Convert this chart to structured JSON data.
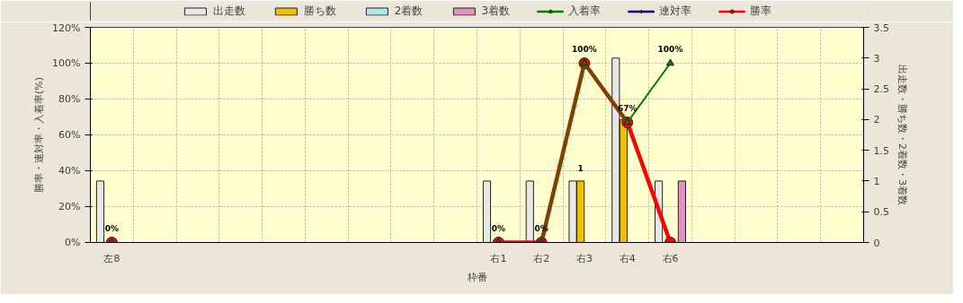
{
  "chart_data": {
    "type": "bar",
    "xlabel": "枠番",
    "ylabel": "勝率・連対率・入着率(%)",
    "y2label": "出走数・勝ち数・2着数・3着数",
    "categories": [
      "左8",
      null,
      null,
      null,
      null,
      null,
      null,
      null,
      null,
      "右1",
      "右2",
      "右3",
      "右4",
      "右6",
      null,
      null,
      null,
      null
    ],
    "series": [
      {
        "name": "出走数",
        "axis": "y2",
        "color": "#e8e8e8",
        "values": [
          1,
          null,
          null,
          null,
          null,
          null,
          null,
          null,
          null,
          1,
          1,
          1,
          3,
          1,
          null,
          null,
          null,
          null
        ]
      },
      {
        "name": "勝ち数",
        "axis": "y2",
        "color": "#f0c000",
        "values": [
          0,
          null,
          null,
          null,
          null,
          null,
          null,
          null,
          null,
          0,
          0,
          1,
          2,
          0,
          null,
          null,
          null,
          null
        ],
        "value_labels": [
          null,
          null,
          null,
          null,
          null,
          null,
          null,
          null,
          null,
          null,
          null,
          "1",
          null,
          null,
          null,
          null,
          null,
          null
        ]
      },
      {
        "name": "2着数",
        "axis": "y2",
        "color": "#b0e8f0",
        "values": [
          0,
          null,
          null,
          null,
          null,
          null,
          null,
          null,
          null,
          0,
          0,
          0,
          0,
          0,
          null,
          null,
          null,
          null
        ]
      },
      {
        "name": "3着数",
        "axis": "y2",
        "color": "#e890c0",
        "values": [
          0,
          null,
          null,
          null,
          null,
          null,
          null,
          null,
          null,
          0,
          0,
          0,
          0,
          1,
          null,
          null,
          null,
          null
        ]
      },
      {
        "name": "入着率",
        "type": "line",
        "marker": "triangle",
        "color": "#008000",
        "values": [
          0,
          null,
          null,
          null,
          null,
          null,
          null,
          null,
          null,
          0,
          0,
          100,
          67,
          100,
          null,
          null,
          null,
          null
        ],
        "value_labels": [
          "0%",
          null,
          null,
          null,
          null,
          null,
          null,
          null,
          null,
          "0%",
          "0%",
          "100%",
          "67%",
          "100%",
          null,
          null,
          null,
          null
        ]
      },
      {
        "name": "連対率",
        "type": "line",
        "marker": "diamond",
        "color": "#000080",
        "values": [
          null,
          null,
          null,
          null,
          null,
          null,
          null,
          null,
          null,
          null,
          null,
          null,
          null,
          null,
          null,
          null,
          null,
          null
        ]
      },
      {
        "name": "勝率",
        "type": "line",
        "marker": "circle",
        "color": "#ff0000",
        "values": [
          0,
          null,
          null,
          null,
          null,
          null,
          null,
          null,
          null,
          0,
          0,
          100,
          67,
          0,
          null,
          null,
          null,
          null
        ]
      }
    ],
    "ylim": [
      0,
      120
    ],
    "yticks": [
      {
        "value": 0,
        "label": "0%"
      },
      {
        "value": 20,
        "label": "20%"
      },
      {
        "value": 40,
        "label": "40%"
      },
      {
        "value": 60,
        "label": "60%"
      },
      {
        "value": 80,
        "label": "80%"
      },
      {
        "value": 100,
        "label": "100%"
      },
      {
        "value": 120,
        "label": "120%"
      }
    ],
    "y2lim": [
      0,
      3.5
    ],
    "y2ticks": [
      0,
      0.5,
      1,
      1.5,
      2,
      2.5,
      3,
      3.5
    ],
    "grid": true,
    "legend": "top"
  }
}
